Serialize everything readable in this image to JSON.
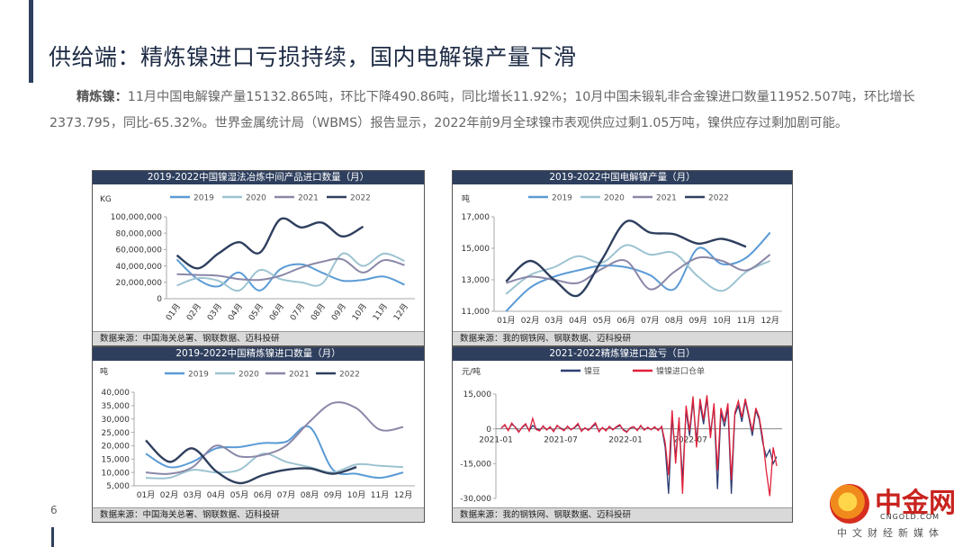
{
  "page": {
    "title": "供给端：精炼镍进口亏损持续，国内电解镍产量下滑",
    "paragraph_lead": "精炼镍：",
    "paragraph_body": "11月中国电解镍产量15132.865吨，环比下降490.86吨，同比增长11.92%；10月中国未锻轧非合金镍进口数量11952.507吨，环比增长2373.795，同比-65.32%。世界金属统计局（WBMS）报告显示，2022年前9月全球镍市表观供应过剩1.05万吨，镍供应存过剩加剧可能。",
    "page_number": "6"
  },
  "logo": {
    "name": "中金网",
    "url": "CNGOLD.COM",
    "tagline": "中文财经新媒体"
  },
  "colors": {
    "2019": "#5b9bd5",
    "2020": "#9dc3d1",
    "2021": "#8a87a8",
    "2022": "#2e3f5e",
    "nickel_bean": "#2e3f74",
    "import_order": "#e0203a"
  },
  "chart_data": [
    {
      "id": "c1",
      "type": "line",
      "title": "2019-2022中国镍湿法冶炼中间产品进口数量（月）",
      "unit": "KG",
      "source": "数据来源：中国海关总署、钢联数据、迈科投研",
      "categories": [
        "01月",
        "02月",
        "03月",
        "04月",
        "05月",
        "06月",
        "07月",
        "08月",
        "09月",
        "10月",
        "11月",
        "12月"
      ],
      "ylim": [
        0,
        100000000
      ],
      "yticks": [
        "0",
        "20,000,000",
        "40,000,000",
        "60,000,000",
        "80,000,000",
        "100,000,000"
      ],
      "legend": [
        "2019",
        "2020",
        "2021",
        "2022"
      ],
      "series": [
        {
          "name": "2019",
          "values": [
            48000000,
            24000000,
            15000000,
            32000000,
            10000000,
            36000000,
            42000000,
            32000000,
            22000000,
            23000000,
            27000000,
            17000000
          ]
        },
        {
          "name": "2020",
          "values": [
            16000000,
            25000000,
            22000000,
            10000000,
            35000000,
            24000000,
            20000000,
            18000000,
            55000000,
            40000000,
            55000000,
            46000000
          ]
        },
        {
          "name": "2021",
          "values": [
            30000000,
            29000000,
            28000000,
            24000000,
            23000000,
            28000000,
            38000000,
            45000000,
            48000000,
            32000000,
            47000000,
            41000000
          ]
        },
        {
          "name": "2022",
          "values": [
            53000000,
            37000000,
            55000000,
            69000000,
            56000000,
            97000000,
            87000000,
            93000000,
            76000000,
            88000000,
            null,
            null
          ]
        }
      ]
    },
    {
      "id": "c2",
      "type": "line",
      "title": "2019-2022中国电解镍产量（月）",
      "unit": "吨",
      "source": "数据来源：我的钢铁网、钢联数据、迈科投研",
      "categories": [
        "01月",
        "02月",
        "03月",
        "04月",
        "05月",
        "06月",
        "07月",
        "08月",
        "09月",
        "10月",
        "11月",
        "12月"
      ],
      "ylim": [
        11000,
        17000
      ],
      "yticks": [
        "11,000",
        "13,000",
        "15,000",
        "17,000"
      ],
      "legend": [
        "2019",
        "2020",
        "2021",
        "2022"
      ],
      "series": [
        {
          "name": "2019",
          "values": [
            11000,
            12500,
            13200,
            13600,
            13900,
            13800,
            13300,
            12400,
            15000,
            14000,
            14400,
            16000
          ]
        },
        {
          "name": "2020",
          "values": [
            12100,
            13300,
            13800,
            14500,
            14100,
            15200,
            14600,
            14700,
            13200,
            12300,
            13500,
            14200
          ]
        },
        {
          "name": "2021",
          "values": [
            12800,
            13200,
            13000,
            12800,
            13700,
            14200,
            12400,
            13500,
            14400,
            14200,
            13600,
            14600
          ]
        },
        {
          "name": "2022",
          "values": [
            12900,
            14200,
            13000,
            12000,
            14300,
            16700,
            16000,
            15900,
            15300,
            15600,
            15100,
            null
          ]
        }
      ]
    },
    {
      "id": "c3",
      "type": "line",
      "title": "2019-2022中国精炼镍进口数量（月）",
      "unit": "吨",
      "source": "数据来源：中国海关总署、钢联数据、迈科投研",
      "categories": [
        "01月",
        "02月",
        "03月",
        "04月",
        "05月",
        "06月",
        "07月",
        "08月",
        "09月",
        "10月",
        "11月",
        "12月"
      ],
      "ylim": [
        5000,
        40000
      ],
      "yticks": [
        "5,000",
        "10,000",
        "15,000",
        "20,000",
        "25,000",
        "30,000",
        "35,000",
        "40,000"
      ],
      "legend": [
        "2019",
        "2020",
        "2021",
        "2022"
      ],
      "series": [
        {
          "name": "2019",
          "values": [
            17000,
            12000,
            14000,
            19000,
            19500,
            21000,
            21500,
            27000,
            11000,
            9500,
            8000,
            10000
          ]
        },
        {
          "name": "2020",
          "values": [
            8000,
            8000,
            11000,
            10000,
            11000,
            17000,
            14000,
            12000,
            10000,
            13000,
            12500,
            12000
          ]
        },
        {
          "name": "2021",
          "values": [
            10000,
            9500,
            12000,
            20000,
            16000,
            16500,
            20000,
            29000,
            36000,
            34000,
            26000,
            27000
          ]
        },
        {
          "name": "2022",
          "values": [
            22000,
            14000,
            19000,
            10500,
            6000,
            9000,
            11000,
            11500,
            9500,
            12000,
            null,
            null
          ]
        }
      ]
    },
    {
      "id": "c4",
      "type": "line",
      "title": "2021-2022精炼镍进口盈亏（日）",
      "unit": "元/吨",
      "source": "数据来源：我的钢铁网、钢联数据、迈科投研",
      "xticks": [
        "2021-01",
        "2021-07",
        "2022-01",
        "2022-07"
      ],
      "ylim": [
        -30000,
        15000
      ],
      "yticks": [
        "15,000",
        "0",
        "-15,000",
        "-30,000"
      ],
      "legend": [
        "镍豆",
        "镍镍进口仓单"
      ],
      "series": [
        {
          "name": "镍豆",
          "values": [
            500,
            1500,
            -500,
            2000,
            800,
            -1200,
            600,
            1800,
            -800,
            1500,
            200,
            -600,
            1000,
            -300,
            600,
            -900,
            1200,
            400,
            -500,
            900,
            -200,
            500,
            1800,
            -800,
            300,
            -400,
            700,
            2000,
            -1000,
            400,
            -600,
            800,
            -200,
            600,
            1400,
            -300,
            -1200,
            300,
            800,
            -500,
            1200,
            -300,
            400,
            -200,
            600,
            -400,
            800,
            -8000,
            -28000,
            5000,
            -12000,
            3000,
            -22000,
            8000,
            -3000,
            12000,
            -5000,
            11000,
            2000,
            13000,
            -2000,
            10000,
            -26000,
            7000,
            1000,
            9000,
            -28000,
            6000,
            10000,
            3000,
            12000,
            5000,
            -3000,
            8000,
            4000,
            -6000,
            -12000,
            -9000,
            -15000,
            -12000
          ]
        },
        {
          "name": "镍镍进口仓单",
          "values": [
            300,
            1800,
            -800,
            2500,
            600,
            -1500,
            800,
            2200,
            -1000,
            4500,
            -300,
            -900,
            1300,
            -500,
            900,
            -1200,
            1500,
            200,
            -800,
            1200,
            -400,
            700,
            2300,
            -1100,
            500,
            -700,
            1000,
            2600,
            -1300,
            600,
            -900,
            1100,
            -500,
            900,
            1800,
            -600,
            -1500,
            500,
            1000,
            -800,
            1500,
            -600,
            700,
            -400,
            900,
            -700,
            1100,
            -6000,
            -20000,
            8000,
            -15000,
            5000,
            -28000,
            10000,
            -1000,
            14000,
            -8000,
            13000,
            4000,
            14500,
            -4000,
            11000,
            -18000,
            9000,
            3000,
            11000,
            -22000,
            7000,
            12000,
            5000,
            13000,
            6000,
            -1000,
            9000,
            5000,
            -4000,
            -18000,
            -29000,
            -8000,
            -16000
          ]
        }
      ]
    }
  ]
}
